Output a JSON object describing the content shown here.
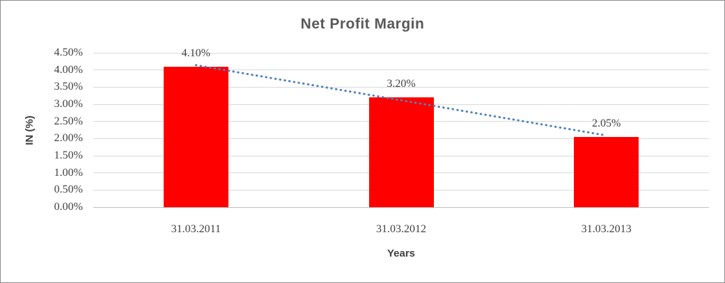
{
  "chart_data": {
    "type": "bar",
    "title": "Net Profit Margin",
    "xlabel": "Years",
    "ylabel": "IN (%)",
    "categories": [
      "31.03.2011",
      "31.03.2012",
      "31.03.2013"
    ],
    "values": [
      4.1,
      3.2,
      2.05
    ],
    "data_labels": [
      "4.10%",
      "3.20%",
      "2.05%"
    ],
    "ylim": [
      0,
      4.5
    ],
    "ytick_step": 0.5,
    "ytick_labels": [
      "4.50%",
      "4.00%",
      "3.50%",
      "3.00%",
      "2.50%",
      "2.00%",
      "1.50%",
      "1.00%",
      "0.50%",
      "0.00%"
    ],
    "grid": true,
    "legend_position": "none",
    "trendline": {
      "type": "linear",
      "style": "dotted",
      "color": "#4e81bd"
    },
    "colors": {
      "bar": "#ff0000",
      "gridline": "#d9d9d9",
      "axis_line": "#bfbfbf",
      "title_text": "#595959",
      "axis_text": "#404040",
      "border": "#8c8c8c"
    }
  }
}
